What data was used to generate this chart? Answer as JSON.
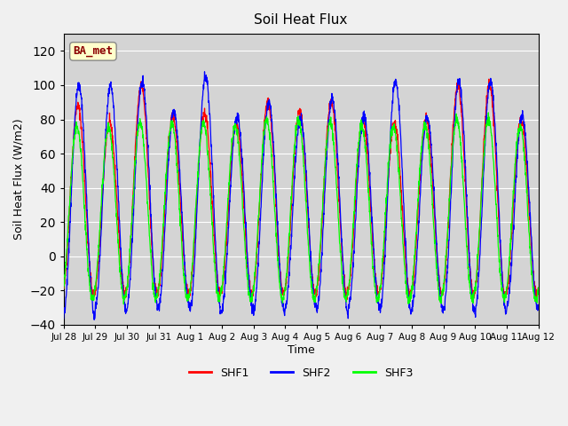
{
  "title": "Soil Heat Flux",
  "ylabel": "Soil Heat Flux (W/m2)",
  "xlabel": "Time",
  "ylim": [
    -40,
    130
  ],
  "annotation_text": "BA_met",
  "annotation_bg": "#ffffcc",
  "annotation_border": "#888888",
  "annotation_text_color": "#8B0000",
  "tick_labels": [
    "Jul 28",
    "Jul 29",
    "Jul 30",
    "Jul 31",
    "Aug 1",
    "Aug 2",
    "Aug 3",
    "Aug 4",
    "Aug 5",
    "Aug 6",
    "Aug 7",
    "Aug 8",
    "Aug 9",
    "Aug 10",
    "Aug 11",
    "Aug 12"
  ],
  "legend": [
    {
      "label": "SHF1",
      "color": "red"
    },
    {
      "label": "SHF2",
      "color": "blue"
    },
    {
      "label": "SHF3",
      "color": "lime"
    }
  ],
  "line_colors": [
    "red",
    "blue",
    "lime"
  ],
  "n_days": 15,
  "points_per_day": 144,
  "peak_shf1": [
    88,
    78,
    100,
    82,
    84,
    78,
    90,
    85,
    90,
    80,
    78,
    80,
    100,
    100,
    80
  ],
  "peak_shf2": [
    100,
    100,
    102,
    85,
    105,
    82,
    90,
    80,
    92,
    82,
    102,
    82,
    102,
    102,
    82
  ],
  "peak_shf3": [
    76,
    75,
    78,
    78,
    78,
    76,
    80,
    80,
    78,
    76,
    76,
    76,
    80,
    80,
    76
  ],
  "trough_shf1": [
    -22,
    -22,
    -22,
    -22,
    -22,
    -22,
    -22,
    -22,
    -22,
    -22,
    -22,
    -22,
    -22,
    -22,
    -22
  ],
  "trough_shf2": [
    -35,
    -32,
    -30,
    -30,
    -32,
    -30,
    -32,
    -30,
    -32,
    -30,
    -32,
    -30,
    -32,
    -32,
    -30
  ],
  "trough_shf3": [
    -25,
    -25,
    -25,
    -25,
    -25,
    -25,
    -25,
    -25,
    -25,
    -25,
    -25,
    -25,
    -25,
    -25,
    -25
  ]
}
